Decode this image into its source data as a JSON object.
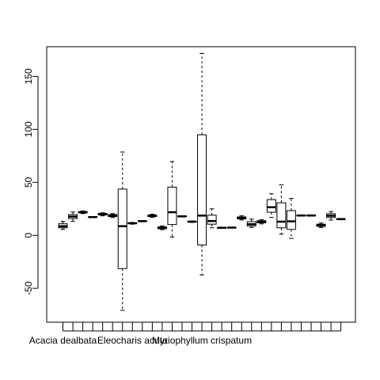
{
  "chart_data": {
    "type": "boxplot",
    "title": "",
    "xlabel": "",
    "ylabel": "",
    "ylim": [
      -82,
      178
    ],
    "y_ticks": [
      -50,
      0,
      50,
      100,
      150
    ],
    "y_tick_labels": [
      "-50",
      "0",
      "50",
      "100",
      "150"
    ],
    "x_labels": [
      {
        "index": 1,
        "text": "Acacia dealbata"
      },
      {
        "index": 8,
        "text": "Eleocharis acuta"
      },
      {
        "index": 15,
        "text": "Myriophyllum crispatum"
      }
    ],
    "boxes": [
      {
        "min": 5.6,
        "q1": 7.1,
        "median": 8.6,
        "q3": 10.9,
        "max": 13.2
      },
      {
        "min": 13.2,
        "q1": 15.8,
        "median": 17.7,
        "q3": 19.6,
        "max": 22.0
      },
      {
        "min": 20.5,
        "q1": 21.1,
        "median": 21.8,
        "q3": 22.4,
        "max": 23.0
      },
      {
        "min": 16.8,
        "q1": 17.0,
        "median": 17.2,
        "q3": 17.5,
        "max": 17.7
      },
      {
        "min": 18.4,
        "q1": 19.2,
        "median": 20.0,
        "q3": 20.7,
        "max": 21.3
      },
      {
        "min": 16.8,
        "q1": 17.7,
        "median": 18.6,
        "q3": 19.6,
        "max": 20.5
      },
      {
        "min": -70.8,
        "q1": -31.4,
        "median": 8.6,
        "q3": 43.6,
        "max": 78.6
      },
      {
        "min": 10.5,
        "q1": 11.0,
        "median": 11.4,
        "q3": 11.8,
        "max": 12.2
      },
      {
        "min": 12.8,
        "q1": 13.1,
        "median": 13.4,
        "q3": 13.6,
        "max": 13.8
      },
      {
        "min": 16.9,
        "q1": 17.7,
        "median": 18.5,
        "q3": 19.2,
        "max": 19.9
      },
      {
        "min": 5.3,
        "q1": 6.2,
        "median": 7.1,
        "q3": 8.0,
        "max": 8.9
      },
      {
        "min": -1.6,
        "q1": 10.2,
        "median": 21.8,
        "q3": 45.5,
        "max": 69.6
      },
      {
        "min": 17.3,
        "q1": 17.6,
        "median": 17.9,
        "q3": 18.2,
        "max": 18.5
      },
      {
        "min": 12.2,
        "q1": 12.5,
        "median": 12.9,
        "q3": 13.2,
        "max": 13.5
      },
      {
        "min": -37.4,
        "q1": -9.1,
        "median": 18.6,
        "q3": 94.9,
        "max": 171.7
      },
      {
        "min": 7.1,
        "q1": 10.5,
        "median": 13.5,
        "q3": 19.0,
        "max": 25.0
      },
      {
        "min": 6.5,
        "q1": 6.8,
        "median": 7.1,
        "q3": 7.4,
        "max": 7.7
      },
      {
        "min": 6.8,
        "q1": 7.0,
        "median": 7.3,
        "q3": 7.5,
        "max": 7.7
      },
      {
        "min": 14.5,
        "q1": 15.5,
        "median": 16.5,
        "q3": 17.4,
        "max": 18.4
      },
      {
        "min": 7.4,
        "q1": 8.9,
        "median": 10.5,
        "q3": 12.9,
        "max": 15.3
      },
      {
        "min": 10.8,
        "q1": 11.8,
        "median": 12.8,
        "q3": 13.8,
        "max": 14.7
      },
      {
        "min": 16.9,
        "q1": 21.8,
        "median": 26.5,
        "q3": 33.7,
        "max": 39.2
      },
      {
        "min": 1.1,
        "q1": 7.1,
        "median": 12.9,
        "q3": 30.7,
        "max": 47.6
      },
      {
        "min": -2.9,
        "q1": 5.6,
        "median": 13.2,
        "q3": 23.3,
        "max": 34.8
      },
      {
        "min": 18.1,
        "q1": 18.4,
        "median": 18.7,
        "q3": 19.0,
        "max": 19.3
      },
      {
        "min": 18.1,
        "q1": 18.4,
        "median": 18.7,
        "q3": 19.0,
        "max": 19.3
      },
      {
        "min": 7.4,
        "q1": 8.4,
        "median": 9.5,
        "q3": 10.5,
        "max": 11.6
      },
      {
        "min": 14.4,
        "q1": 16.8,
        "median": 18.5,
        "q3": 20.4,
        "max": 22.4
      },
      {
        "min": 14.7,
        "q1": 15.0,
        "median": 15.3,
        "q3": 15.6,
        "max": 15.9
      }
    ]
  }
}
